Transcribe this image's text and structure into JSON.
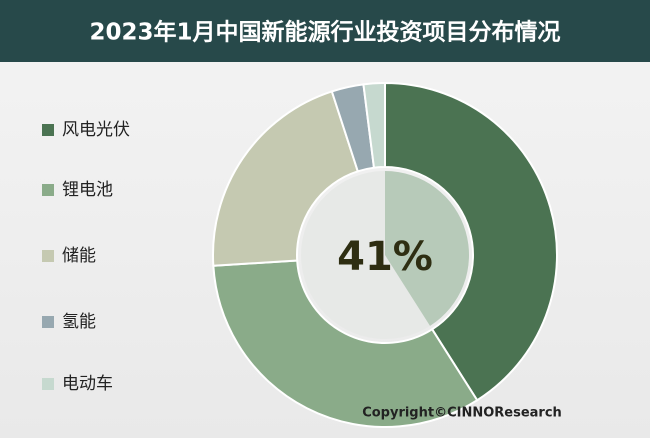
{
  "chart_data": {
    "type": "donut",
    "title": "2023年1月中国新能源行业投资项目分布情况",
    "categories": [
      "风电光伏",
      "锂电池",
      "储能",
      "氢能",
      "电动车"
    ],
    "values": [
      41,
      33,
      21,
      3,
      2
    ],
    "colors": [
      "#4b7352",
      "#8aab89",
      "#c5c9b1",
      "#97a8b0",
      "#c6d9cf"
    ],
    "center_label": {
      "value": 41,
      "label": "41%"
    },
    "inner_colors": [
      "#b7cab9",
      "#e7e9e7"
    ],
    "source": "Copyright©CINNOResearch"
  }
}
